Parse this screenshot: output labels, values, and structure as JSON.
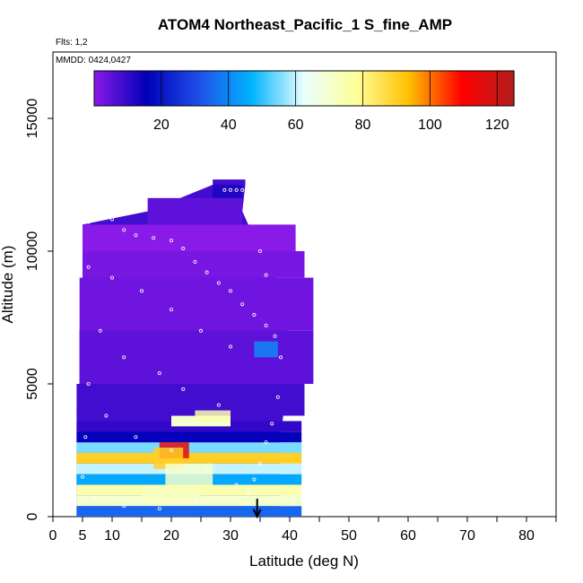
{
  "chart_data": {
    "type": "heatmap",
    "title": "ATOM4 Northeast_Pacific_1 S_fine_AMP",
    "subtitle": "Flts: 1,2",
    "annotation": "MMDD: 0424,0427",
    "xlabel": "Latitude (deg N)",
    "ylabel": "Altitude (m)",
    "xlim": [
      0,
      85
    ],
    "ylim": [
      0,
      17500
    ],
    "x_ticks": [
      0,
      5,
      10,
      20,
      30,
      40,
      50,
      60,
      70,
      80
    ],
    "x_minor_ticks": [
      15,
      25,
      35,
      45,
      55,
      65,
      75,
      85
    ],
    "y_ticks": [
      0,
      5000,
      10000,
      15000
    ],
    "colorbar": {
      "range": [
        0,
        125
      ],
      "ticks": [
        20,
        40,
        60,
        80,
        100,
        120
      ],
      "colors": [
        "#8a1ae8",
        "#0000b8",
        "#1f4fe8",
        "#00b4ff",
        "#eaffff",
        "#ffff99",
        "#ffc000",
        "#ff0000",
        "#b41e1e"
      ]
    },
    "grid": false,
    "marker_latitude": 34.5,
    "envelope": [
      [
        4,
        0,
        38
      ],
      [
        4,
        1000,
        38.5
      ],
      [
        4,
        2000,
        38.5
      ],
      [
        4,
        3000,
        38.5
      ],
      [
        4,
        4000,
        39
      ],
      [
        4.5,
        5000,
        39.5
      ],
      [
        4.5,
        6000,
        40
      ],
      [
        4.5,
        7000,
        39.5
      ],
      [
        5,
        8000,
        39.5
      ],
      [
        5,
        9000,
        37.5
      ],
      [
        5,
        10000,
        36
      ],
      [
        5,
        11000,
        33
      ],
      [
        16,
        11500,
        32
      ],
      [
        27,
        12500,
        32.5
      ]
    ],
    "cells": [
      [
        4,
        0,
        38,
        400,
        35
      ],
      [
        4,
        400,
        38,
        400,
        70
      ],
      [
        4,
        800,
        38,
        400,
        75
      ],
      [
        4,
        1200,
        38,
        400,
        45
      ],
      [
        4,
        1600,
        38,
        400,
        60
      ],
      [
        4,
        2000,
        38,
        400,
        90
      ],
      [
        4,
        2400,
        38,
        400,
        55
      ],
      [
        4,
        2800,
        38,
        400,
        15
      ],
      [
        4,
        3200,
        38,
        400,
        10
      ],
      [
        20,
        3400,
        10,
        400,
        70
      ],
      [
        4,
        3800,
        38.5,
        1200,
        8
      ],
      [
        4.5,
        5000,
        39.5,
        2000,
        5
      ],
      [
        4.5,
        7000,
        39.5,
        2000,
        3
      ],
      [
        5,
        9000,
        37.5,
        1000,
        2
      ],
      [
        5,
        10000,
        36,
        1000,
        0
      ],
      [
        16,
        11000,
        16,
        1000,
        5
      ],
      [
        27,
        12000,
        5,
        500,
        12
      ]
    ],
    "hotspots": [
      [
        18,
        2200,
        5,
        600,
        115
      ],
      [
        17,
        1800,
        5,
        800,
        90
      ],
      [
        19,
        1200,
        8,
        800,
        70
      ],
      [
        15,
        500,
        10,
        600,
        72
      ],
      [
        24,
        3600,
        6,
        400,
        75
      ],
      [
        34,
        6000,
        4,
        600,
        40
      ]
    ],
    "points": [
      [
        4.8,
        11400
      ],
      [
        6,
        11100
      ],
      [
        8,
        11300
      ],
      [
        10,
        11200
      ],
      [
        12,
        10800
      ],
      [
        14,
        10600
      ],
      [
        17,
        10500
      ],
      [
        20,
        10400
      ],
      [
        22,
        10100
      ],
      [
        24,
        9600
      ],
      [
        26,
        9200
      ],
      [
        28,
        8800
      ],
      [
        30,
        8500
      ],
      [
        32,
        8000
      ],
      [
        34,
        7600
      ],
      [
        36,
        7200
      ],
      [
        37.5,
        6800
      ],
      [
        38.5,
        6000
      ],
      [
        38,
        4500
      ],
      [
        37,
        3500
      ],
      [
        36,
        2800
      ],
      [
        35,
        2000
      ],
      [
        34,
        1400
      ],
      [
        33,
        900
      ],
      [
        10,
        9000
      ],
      [
        15,
        8500
      ],
      [
        20,
        7800
      ],
      [
        25,
        7000
      ],
      [
        30,
        6400
      ],
      [
        12,
        6000
      ],
      [
        18,
        5400
      ],
      [
        22,
        4800
      ],
      [
        28,
        4200
      ],
      [
        9,
        3800
      ],
      [
        14,
        3000
      ],
      [
        20,
        2500
      ],
      [
        26,
        1800
      ],
      [
        31,
        1200
      ],
      [
        7,
        700
      ],
      [
        12,
        400
      ],
      [
        18,
        300
      ],
      [
        24,
        600
      ],
      [
        29,
        12300
      ],
      [
        30,
        12300
      ],
      [
        31,
        12300
      ],
      [
        32,
        12300
      ],
      [
        33,
        11600
      ],
      [
        35,
        10000
      ],
      [
        36,
        9100
      ],
      [
        6,
        9400
      ],
      [
        8,
        7000
      ],
      [
        6,
        5000
      ],
      [
        5.5,
        3000
      ],
      [
        5,
        1500
      ]
    ]
  }
}
